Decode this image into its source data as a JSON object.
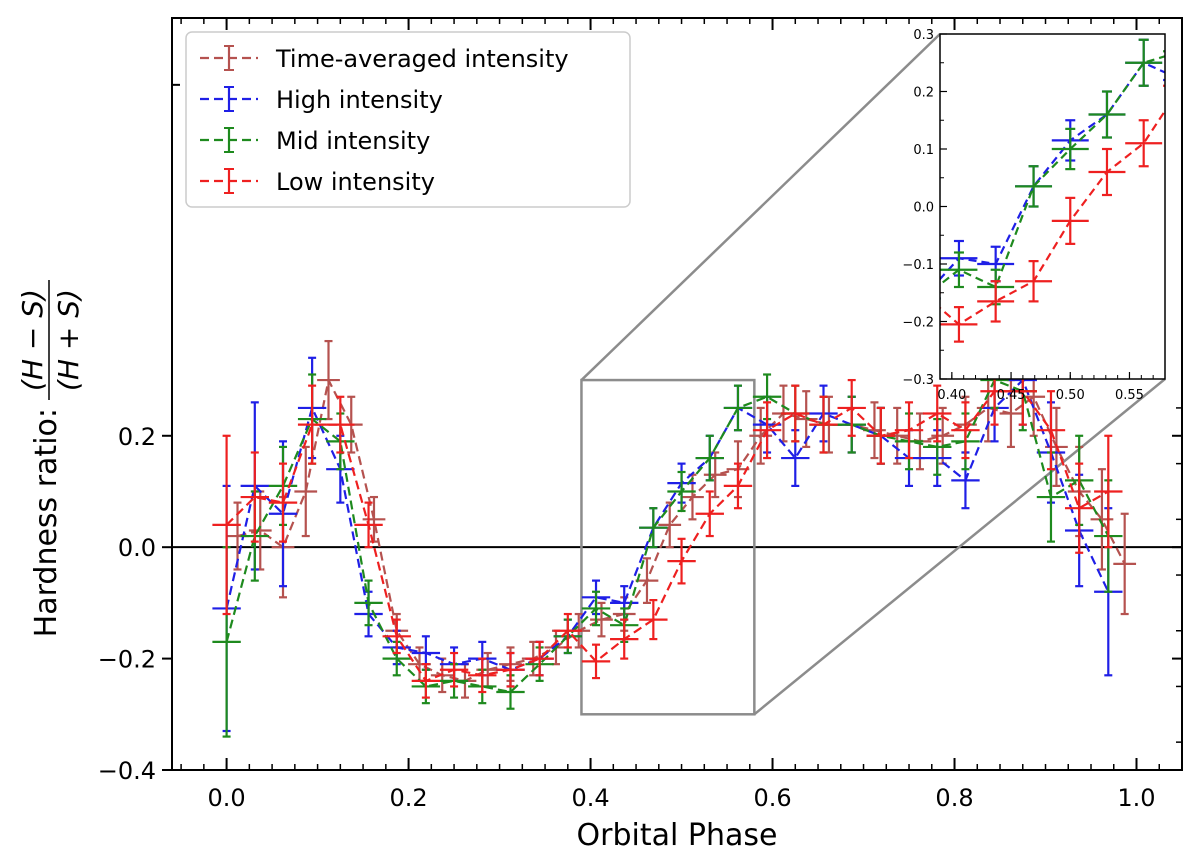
{
  "chart_data": {
    "type": "line",
    "xlabel": "Orbital Phase",
    "ylabel_prefix": "Hardness ratio:",
    "ylabel_num": "(H − S)",
    "ylabel_den": "(H + S)",
    "xlim": [
      -0.06,
      1.05
    ],
    "ylim": [
      -0.4,
      0.95
    ],
    "xticks": [
      "0.0",
      "0.2",
      "0.4",
      "0.6",
      "0.8",
      "1.0"
    ],
    "yticks": [
      "−0.4",
      "−0.2",
      "0.0",
      "0.2"
    ],
    "zero_line": 0.0,
    "legend_position": "top-left",
    "series": [
      {
        "name": "Time-averaged intensity",
        "color": "#b5524f",
        "x": [
          0.012,
          0.037,
          0.062,
          0.087,
          0.112,
          0.137,
          0.162,
          0.187,
          0.212,
          0.237,
          0.262,
          0.287,
          0.312,
          0.337,
          0.362,
          0.387,
          0.412,
          0.437,
          0.462,
          0.487,
          0.512,
          0.537,
          0.562,
          0.587,
          0.612,
          0.637,
          0.662,
          0.687,
          0.712,
          0.737,
          0.762,
          0.787,
          0.812,
          0.837,
          0.862,
          0.887,
          0.912,
          0.937,
          0.962,
          0.987
        ],
        "y": [
          0.02,
          0.03,
          0.0,
          0.1,
          0.3,
          0.22,
          0.05,
          -0.15,
          -0.21,
          -0.23,
          -0.24,
          -0.22,
          -0.21,
          -0.2,
          -0.18,
          -0.15,
          -0.13,
          -0.12,
          -0.06,
          0.04,
          0.09,
          0.13,
          0.14,
          0.2,
          0.24,
          0.23,
          0.22,
          0.22,
          0.21,
          0.2,
          0.19,
          0.2,
          0.22,
          0.25,
          0.24,
          0.27,
          0.18,
          0.1,
          0.05,
          -0.03
        ],
        "yerr": [
          0.06,
          0.07,
          0.09,
          0.08,
          0.07,
          0.05,
          0.04,
          0.03,
          0.03,
          0.03,
          0.03,
          0.03,
          0.03,
          0.03,
          0.03,
          0.03,
          0.03,
          0.03,
          0.04,
          0.04,
          0.04,
          0.04,
          0.05,
          0.05,
          0.05,
          0.05,
          0.05,
          0.05,
          0.05,
          0.05,
          0.05,
          0.05,
          0.05,
          0.06,
          0.06,
          0.07,
          0.07,
          0.08,
          0.09,
          0.09
        ],
        "xerr": 0.0125
      },
      {
        "name": "High intensity",
        "color": "#1f1fe6",
        "x": [
          0.0,
          0.031,
          0.062,
          0.094,
          0.125,
          0.156,
          0.187,
          0.219,
          0.25,
          0.281,
          0.312,
          0.344,
          0.375,
          0.406,
          0.437,
          0.469,
          0.5,
          0.531,
          0.562,
          0.594,
          0.625,
          0.656,
          0.687,
          0.719,
          0.75,
          0.781,
          0.812,
          0.844,
          0.875,
          0.906,
          0.937,
          0.969
        ],
        "y": [
          -0.11,
          0.11,
          0.06,
          0.25,
          0.14,
          -0.12,
          -0.18,
          -0.19,
          -0.21,
          -0.2,
          -0.22,
          -0.2,
          -0.16,
          -0.09,
          -0.1,
          0.035,
          0.115,
          0.16,
          0.25,
          0.22,
          0.16,
          0.24,
          0.22,
          0.2,
          0.16,
          0.16,
          0.12,
          0.25,
          0.3,
          0.17,
          0.03,
          -0.08
        ],
        "yerr": [
          0.22,
          0.15,
          0.13,
          0.09,
          0.06,
          0.04,
          0.03,
          0.03,
          0.03,
          0.03,
          0.03,
          0.03,
          0.03,
          0.03,
          0.03,
          0.035,
          0.035,
          0.04,
          0.04,
          0.05,
          0.05,
          0.05,
          0.05,
          0.05,
          0.05,
          0.05,
          0.05,
          0.06,
          0.08,
          0.09,
          0.1,
          0.15
        ],
        "xerr": 0.0156
      },
      {
        "name": "Mid intensity",
        "color": "#1e8a1e",
        "x": [
          0.0,
          0.031,
          0.062,
          0.094,
          0.125,
          0.156,
          0.187,
          0.219,
          0.25,
          0.281,
          0.312,
          0.344,
          0.375,
          0.406,
          0.437,
          0.469,
          0.5,
          0.531,
          0.562,
          0.594,
          0.625,
          0.656,
          0.687,
          0.719,
          0.75,
          0.781,
          0.812,
          0.844,
          0.875,
          0.906,
          0.937,
          0.969
        ],
        "y": [
          -0.17,
          0.02,
          0.11,
          0.23,
          0.19,
          -0.1,
          -0.2,
          -0.25,
          -0.24,
          -0.25,
          -0.26,
          -0.21,
          -0.16,
          -0.11,
          -0.14,
          0.035,
          0.1,
          0.16,
          0.25,
          0.27,
          0.24,
          0.22,
          0.22,
          0.2,
          0.19,
          0.18,
          0.19,
          0.3,
          0.28,
          0.09,
          0.12,
          0.02
        ],
        "yerr": [
          0.17,
          0.08,
          0.07,
          0.08,
          0.05,
          0.04,
          0.03,
          0.03,
          0.03,
          0.03,
          0.03,
          0.03,
          0.03,
          0.03,
          0.03,
          0.035,
          0.035,
          0.04,
          0.04,
          0.04,
          0.05,
          0.05,
          0.05,
          0.05,
          0.05,
          0.05,
          0.05,
          0.05,
          0.07,
          0.08,
          0.08,
          0.1
        ],
        "xerr": 0.0156
      },
      {
        "name": "Low intensity",
        "color": "#ee2020",
        "x": [
          0.0,
          0.031,
          0.062,
          0.094,
          0.125,
          0.156,
          0.187,
          0.219,
          0.25,
          0.281,
          0.312,
          0.344,
          0.375,
          0.406,
          0.437,
          0.469,
          0.5,
          0.531,
          0.562,
          0.594,
          0.625,
          0.656,
          0.687,
          0.719,
          0.75,
          0.781,
          0.812,
          0.844,
          0.875,
          0.906,
          0.937,
          0.969
        ],
        "y": [
          0.04,
          0.09,
          0.08,
          0.22,
          0.22,
          0.04,
          -0.16,
          -0.24,
          -0.22,
          -0.23,
          -0.22,
          -0.2,
          -0.15,
          -0.205,
          -0.165,
          -0.13,
          -0.025,
          0.06,
          0.11,
          0.21,
          0.24,
          0.22,
          0.25,
          0.2,
          0.21,
          0.24,
          0.21,
          0.28,
          0.28,
          0.21,
          0.07,
          0.1
        ],
        "yerr": [
          0.16,
          0.08,
          0.07,
          0.07,
          0.05,
          0.04,
          0.03,
          0.03,
          0.03,
          0.03,
          0.03,
          0.03,
          0.03,
          0.03,
          0.035,
          0.035,
          0.04,
          0.04,
          0.04,
          0.05,
          0.05,
          0.05,
          0.05,
          0.05,
          0.05,
          0.05,
          0.05,
          0.06,
          0.06,
          0.07,
          0.08,
          0.1
        ],
        "xerr": 0.0156
      }
    ],
    "inset": {
      "xlim": [
        0.39,
        0.58
      ],
      "ylim": [
        -0.3,
        0.3
      ],
      "xticks": [
        "0.40",
        "0.45",
        "0.50",
        "0.55"
      ],
      "yticks": [
        "−0.3",
        "−0.2",
        "−0.1",
        "0.0",
        "0.1",
        "0.2",
        "0.3"
      ],
      "series_shown": [
        "High intensity",
        "Mid intensity",
        "Low intensity"
      ]
    }
  }
}
